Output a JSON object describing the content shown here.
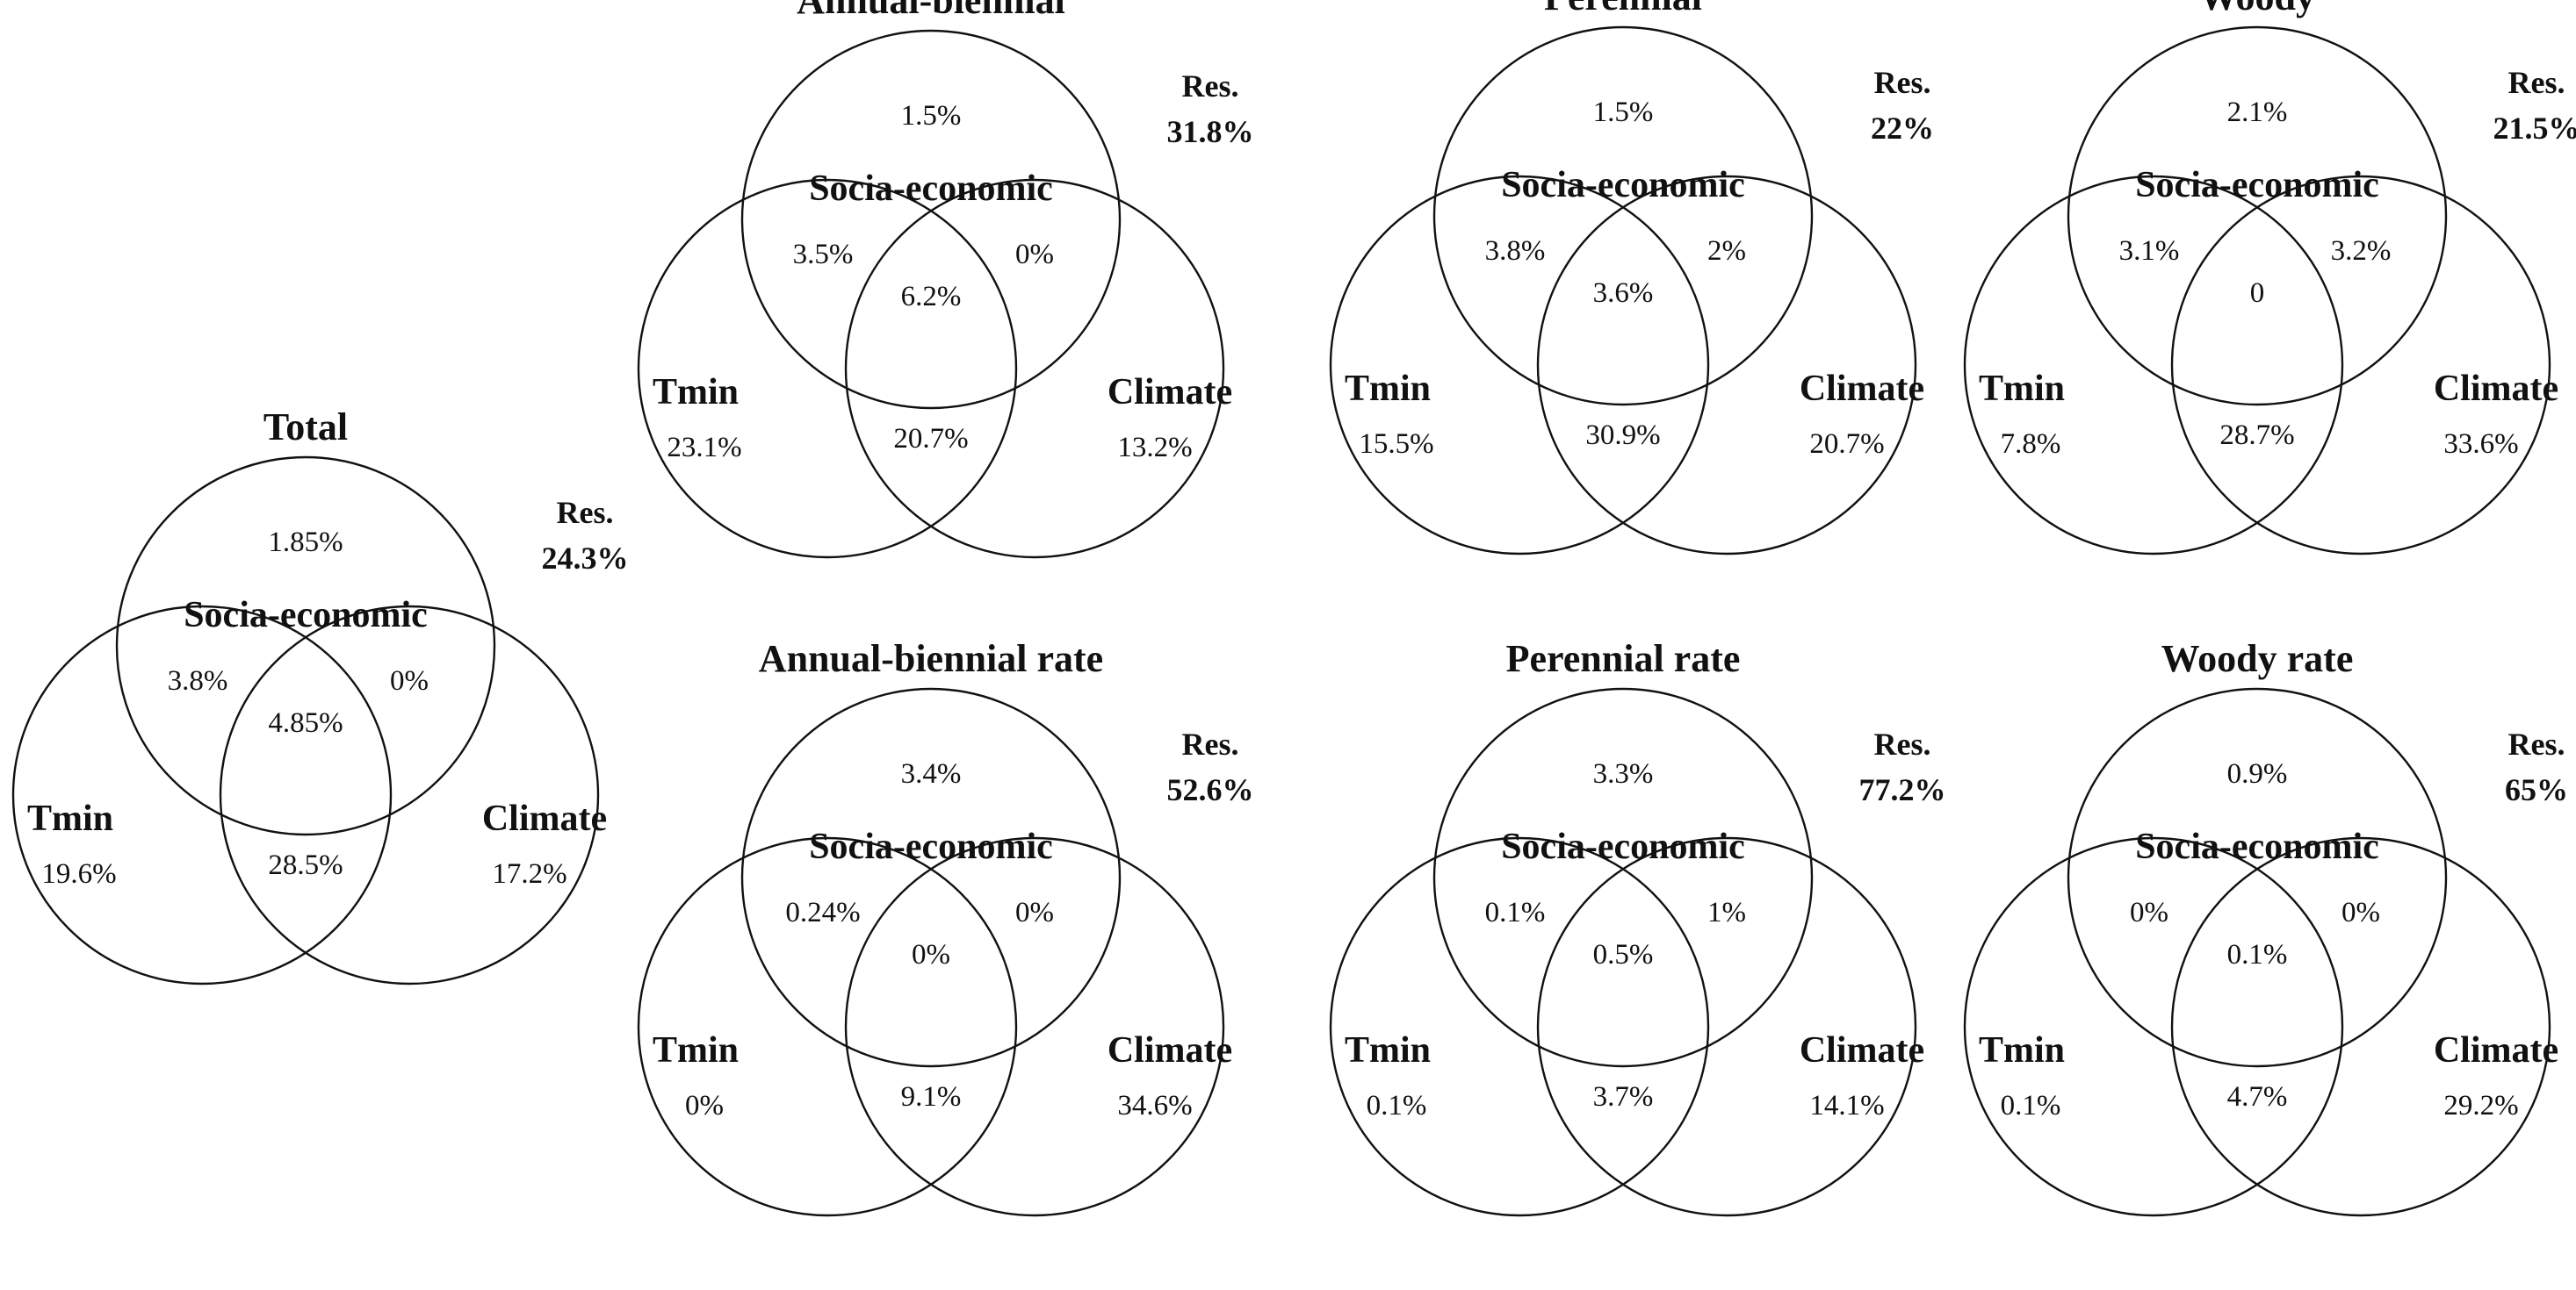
{
  "labels": {
    "top": "Socia-economic",
    "left": "Tmin",
    "right": "Climate",
    "res": "Res."
  },
  "diagrams": [
    {
      "id": "total",
      "title": "Total",
      "values": {
        "top": "1.85%",
        "top_left": "3.8%",
        "top_right": "0%",
        "center": "4.85%",
        "left": "19.6%",
        "bottom": "28.5%",
        "right": "17.2%"
      },
      "res": "24.3%"
    },
    {
      "id": "annual-biennial",
      "title": "Annual-biennial",
      "values": {
        "top": "1.5%",
        "top_left": "3.5%",
        "top_right": "0%",
        "center": "6.2%",
        "left": "23.1%",
        "bottom": "20.7%",
        "right": "13.2%"
      },
      "res": "31.8%"
    },
    {
      "id": "perennial",
      "title": "Perennial",
      "values": {
        "top": "1.5%",
        "top_left": "3.8%",
        "top_right": "2%",
        "center": "3.6%",
        "left": "15.5%",
        "bottom": "30.9%",
        "right": "20.7%"
      },
      "res": "22%"
    },
    {
      "id": "woody",
      "title": "Woody",
      "values": {
        "top": "2.1%",
        "top_left": "3.1%",
        "top_right": "3.2%",
        "center": "0",
        "left": "7.8%",
        "bottom": "28.7%",
        "right": "33.6%"
      },
      "res": "21.5%"
    },
    {
      "id": "annual-biennial-rate",
      "title": "Annual-biennial rate",
      "values": {
        "top": "3.4%",
        "top_left": "0.24%",
        "top_right": "0%",
        "center": "0%",
        "left": "0%",
        "bottom": "9.1%",
        "right": "34.6%"
      },
      "res": "52.6%"
    },
    {
      "id": "perennial-rate",
      "title": "Perennial rate",
      "values": {
        "top": "3.3%",
        "top_left": "0.1%",
        "top_right": "1%",
        "center": "0.5%",
        "left": "0.1%",
        "bottom": "3.7%",
        "right": "14.1%"
      },
      "res": "77.2%"
    },
    {
      "id": "woody-rate",
      "title": "Woody rate",
      "values": {
        "top": "0.9%",
        "top_left": "0%",
        "top_right": "0%",
        "center": "0.1%",
        "left": "0.1%",
        "bottom": "4.7%",
        "right": "29.2%"
      },
      "res": "65%"
    }
  ]
}
